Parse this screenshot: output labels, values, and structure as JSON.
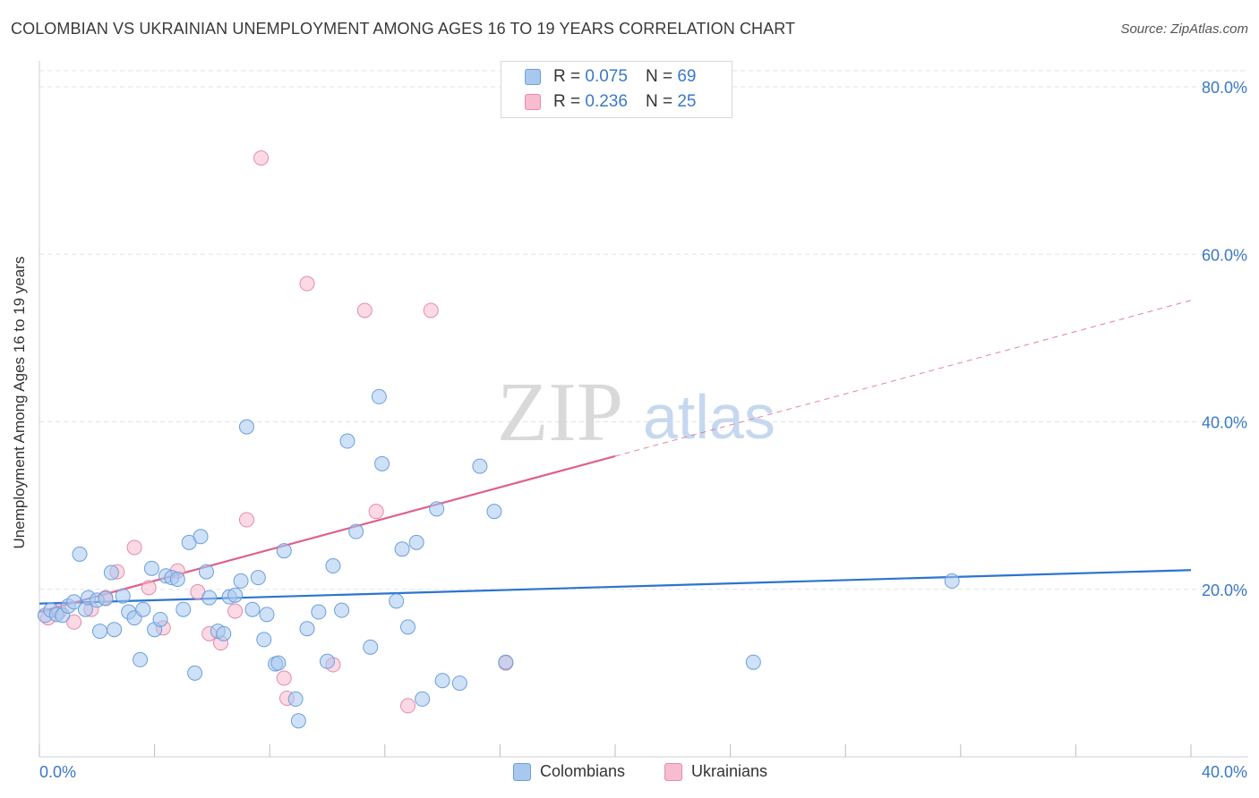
{
  "title": "COLOMBIAN VS UKRAINIAN UNEMPLOYMENT AMONG AGES 16 TO 19 YEARS CORRELATION CHART",
  "source": "Source: ZipAtlas.com",
  "watermark": {
    "zip": "ZIP",
    "atlas": "atlas"
  },
  "legend": {
    "r_label": "R = ",
    "n_label": "N = ",
    "series": [
      {
        "r": "0.075",
        "n": "69"
      },
      {
        "r": "0.236",
        "n": "25"
      }
    ]
  },
  "bottom_legend": [
    "Colombians",
    "Ukrainians"
  ],
  "colors": {
    "colombians_fill": "#a8c8f0",
    "colombians_stroke": "#6b9fdc",
    "colombians_line": "#2b74d0",
    "ukrainians_fill": "#f8bcd0",
    "ukrainians_stroke": "#e88aa8",
    "ukrainians_line": "#e0608a",
    "axis_text": "#3a78c8",
    "grid": "#e3e3e3"
  },
  "chart_data": {
    "type": "scatter",
    "title": "COLOMBIAN VS UKRAINIAN UNEMPLOYMENT AMONG AGES 16 TO 19 YEARS CORRELATION CHART",
    "xlabel": "",
    "ylabel": "Unemployment Among Ages 16 to 19 years",
    "xlim": [
      0,
      40
    ],
    "ylim": [
      0,
      80
    ],
    "x_tick_labels": [
      "0.0%",
      "40.0%"
    ],
    "y_ticks": [
      20,
      40,
      60,
      80
    ],
    "y_tick_labels": [
      "20.0%",
      "40.0%",
      "60.0%",
      "80.0%"
    ],
    "grid": true,
    "legend_position": "top-center",
    "series": [
      {
        "name": "Colombians",
        "r": 0.075,
        "n": 69,
        "trend": {
          "x0": 0,
          "y0": 18.3,
          "x1": 40,
          "y1": 22.3,
          "solid_to": 40
        },
        "points": [
          [
            0.2,
            16.9
          ],
          [
            0.4,
            17.5
          ],
          [
            0.6,
            17.0
          ],
          [
            0.8,
            16.9
          ],
          [
            1.0,
            18.0
          ],
          [
            1.2,
            18.5
          ],
          [
            1.4,
            24.2
          ],
          [
            1.6,
            17.6
          ],
          [
            1.7,
            19.0
          ],
          [
            2.0,
            18.7
          ],
          [
            2.1,
            15.0
          ],
          [
            2.3,
            18.9
          ],
          [
            2.5,
            22.0
          ],
          [
            2.6,
            15.2
          ],
          [
            2.9,
            19.2
          ],
          [
            3.1,
            17.3
          ],
          [
            3.3,
            16.6
          ],
          [
            3.5,
            11.6
          ],
          [
            3.6,
            17.6
          ],
          [
            3.9,
            22.5
          ],
          [
            4.0,
            15.2
          ],
          [
            4.2,
            16.4
          ],
          [
            4.4,
            21.6
          ],
          [
            4.6,
            21.4
          ],
          [
            4.8,
            21.2
          ],
          [
            5.0,
            17.6
          ],
          [
            5.2,
            25.6
          ],
          [
            5.4,
            10.0
          ],
          [
            5.6,
            26.3
          ],
          [
            5.8,
            22.1
          ],
          [
            5.9,
            19.0
          ],
          [
            6.2,
            15.0
          ],
          [
            6.4,
            14.7
          ],
          [
            6.6,
            19.1
          ],
          [
            6.8,
            19.3
          ],
          [
            7.0,
            21.0
          ],
          [
            7.2,
            39.4
          ],
          [
            7.4,
            17.6
          ],
          [
            7.6,
            21.4
          ],
          [
            7.8,
            14.0
          ],
          [
            7.9,
            17.0
          ],
          [
            8.2,
            11.1
          ],
          [
            8.3,
            11.2
          ],
          [
            8.5,
            24.6
          ],
          [
            8.9,
            6.9
          ],
          [
            9.0,
            4.3
          ],
          [
            9.3,
            15.3
          ],
          [
            9.7,
            17.3
          ],
          [
            10.0,
            11.4
          ],
          [
            10.2,
            22.8
          ],
          [
            10.5,
            17.5
          ],
          [
            10.7,
            37.7
          ],
          [
            11.0,
            26.9
          ],
          [
            11.5,
            13.1
          ],
          [
            11.8,
            43.0
          ],
          [
            11.9,
            35.0
          ],
          [
            12.4,
            18.6
          ],
          [
            12.6,
            24.8
          ],
          [
            12.8,
            15.5
          ],
          [
            13.1,
            25.6
          ],
          [
            13.3,
            6.9
          ],
          [
            13.8,
            29.6
          ],
          [
            14.0,
            9.1
          ],
          [
            14.6,
            8.8
          ],
          [
            15.3,
            34.7
          ],
          [
            15.8,
            29.3
          ],
          [
            16.2,
            11.3
          ],
          [
            24.8,
            11.3
          ],
          [
            31.7,
            21.0
          ]
        ]
      },
      {
        "name": "Ukrainians",
        "r": 0.236,
        "n": 25,
        "trend": {
          "x0": 0,
          "y0": 17.3,
          "x1": 40,
          "y1": 54.5,
          "solid_to": 20
        },
        "points": [
          [
            0.3,
            16.6
          ],
          [
            0.7,
            17.4
          ],
          [
            1.2,
            16.1
          ],
          [
            1.8,
            17.6
          ],
          [
            2.3,
            19.0
          ],
          [
            2.7,
            22.1
          ],
          [
            3.3,
            25.0
          ],
          [
            3.8,
            20.2
          ],
          [
            4.3,
            15.4
          ],
          [
            4.8,
            22.2
          ],
          [
            5.5,
            19.7
          ],
          [
            5.9,
            14.7
          ],
          [
            6.3,
            13.6
          ],
          [
            6.8,
            17.4
          ],
          [
            7.2,
            28.3
          ],
          [
            7.7,
            71.5
          ],
          [
            8.5,
            9.4
          ],
          [
            8.6,
            7.0
          ],
          [
            9.3,
            56.5
          ],
          [
            10.2,
            11.0
          ],
          [
            11.3,
            53.3
          ],
          [
            11.7,
            29.3
          ],
          [
            12.8,
            6.1
          ],
          [
            13.6,
            53.3
          ],
          [
            16.2,
            11.2
          ]
        ]
      }
    ]
  }
}
